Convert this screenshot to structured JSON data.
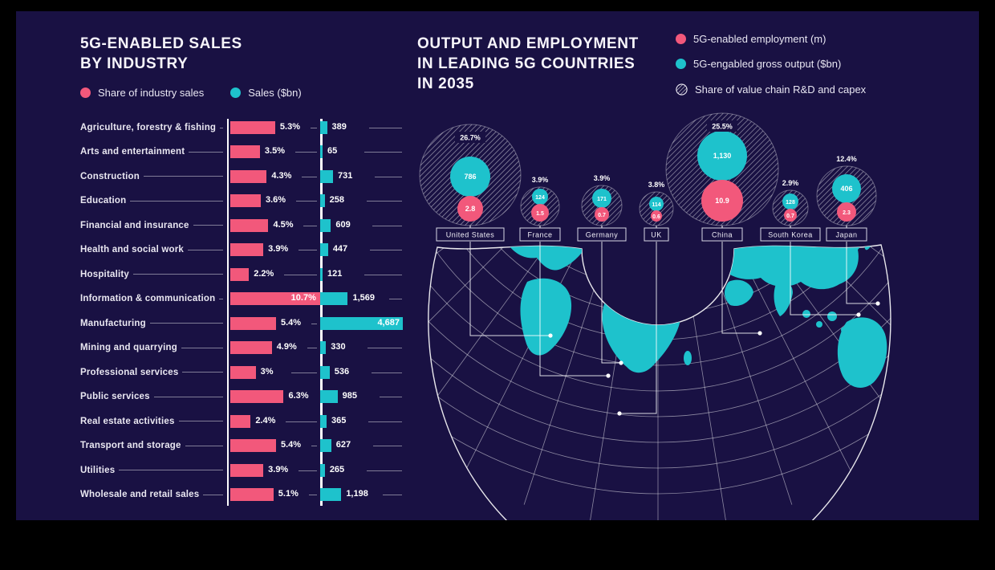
{
  "colors": {
    "pink": "#F2587B",
    "teal": "#1EC2CC",
    "panel": "#191143",
    "text": "#EFEDF6"
  },
  "left": {
    "title_lines": [
      "5G-ENABLED SALES",
      "BY INDUSTRY"
    ],
    "legend": [
      {
        "label": "Share of industry sales"
      },
      {
        "label": "Sales ($bn)"
      }
    ]
  },
  "right": {
    "title_lines": [
      "OUTPUT AND EMPLOYMENT",
      "IN LEADING 5G COUNTRIES",
      "IN 2035"
    ],
    "legend": [
      {
        "icon": "pink-dot",
        "label": "5G-enabled employment (m)"
      },
      {
        "icon": "teal-dot",
        "label": "5G-engabled gross output ($bn)"
      },
      {
        "icon": "hatched-circle",
        "label": "Share of value chain R&D and capex"
      }
    ]
  },
  "chart_data": [
    {
      "type": "bar",
      "title": "5G-ENABLED SALES BY INDUSTRY",
      "categories": [
        "Agriculture, forestry & fishing",
        "Arts and entertainment",
        "Construction",
        "Education",
        "Financial and insurance",
        "Health and social work",
        "Hospitality",
        "Information & communication",
        "Manufacturing",
        "Mining and quarrying",
        "Professional services",
        "Public services",
        "Real estate activities",
        "Transport and storage",
        "Utilities",
        "Wholesale and retail sales"
      ],
      "series": [
        {
          "name": "Share of industry sales",
          "unit": "%",
          "values": [
            5.3,
            3.5,
            4.3,
            3.6,
            4.5,
            3.9,
            2.2,
            10.7,
            5.4,
            4.9,
            3,
            6.3,
            2.4,
            5.4,
            3.9,
            5.1
          ],
          "labels": [
            "5.3%",
            "3.5%",
            "4.3%",
            "3.6%",
            "4.5%",
            "3.9%",
            "2.2%",
            "10.7%",
            "5.4%",
            "4.9%",
            "3%",
            "6.3%",
            "2.4%",
            "5.4%",
            "3.9%",
            "5.1%"
          ]
        },
        {
          "name": "Sales ($bn)",
          "unit": "$bn",
          "values": [
            389,
            65,
            731,
            258,
            609,
            447,
            121,
            1569,
            4687,
            330,
            536,
            985,
            365,
            627,
            265,
            1198
          ],
          "labels": [
            "389",
            "65",
            "731",
            "258",
            "609",
            "447",
            "121",
            "1,569",
            "4,687",
            "330",
            "536",
            "985",
            "365",
            "627",
            "265",
            "1,198"
          ]
        }
      ],
      "legend_position": "top-left",
      "grid": false
    },
    {
      "type": "bubble",
      "title": "OUTPUT AND EMPLOYMENT IN LEADING 5G COUNTRIES IN 2035",
      "series_legend": [
        "5G-enabled employment (m)",
        "5G-engabled gross output ($bn)",
        "Share of value chain R&D and capex"
      ],
      "countries": [
        {
          "name": "United States",
          "rd_capex_share": "26.7%",
          "gross_output_bn": "786",
          "employment_m": "2.8"
        },
        {
          "name": "France",
          "rd_capex_share": "3.9%",
          "gross_output_bn": "124",
          "employment_m": "1.5"
        },
        {
          "name": "Germany",
          "rd_capex_share": "3.9%",
          "gross_output_bn": "171",
          "employment_m": "0.7"
        },
        {
          "name": "UK",
          "rd_capex_share": "3.8%",
          "gross_output_bn": "114",
          "employment_m": "0.6"
        },
        {
          "name": "China",
          "rd_capex_share": "25.5%",
          "gross_output_bn": "1,130",
          "employment_m": "10.9"
        },
        {
          "name": "South Korea",
          "rd_capex_share": "2.9%",
          "gross_output_bn": "128",
          "employment_m": "0.7"
        },
        {
          "name": "Japan",
          "rd_capex_share": "12.4%",
          "gross_output_bn": "406",
          "employment_m": "2.3"
        }
      ]
    }
  ]
}
